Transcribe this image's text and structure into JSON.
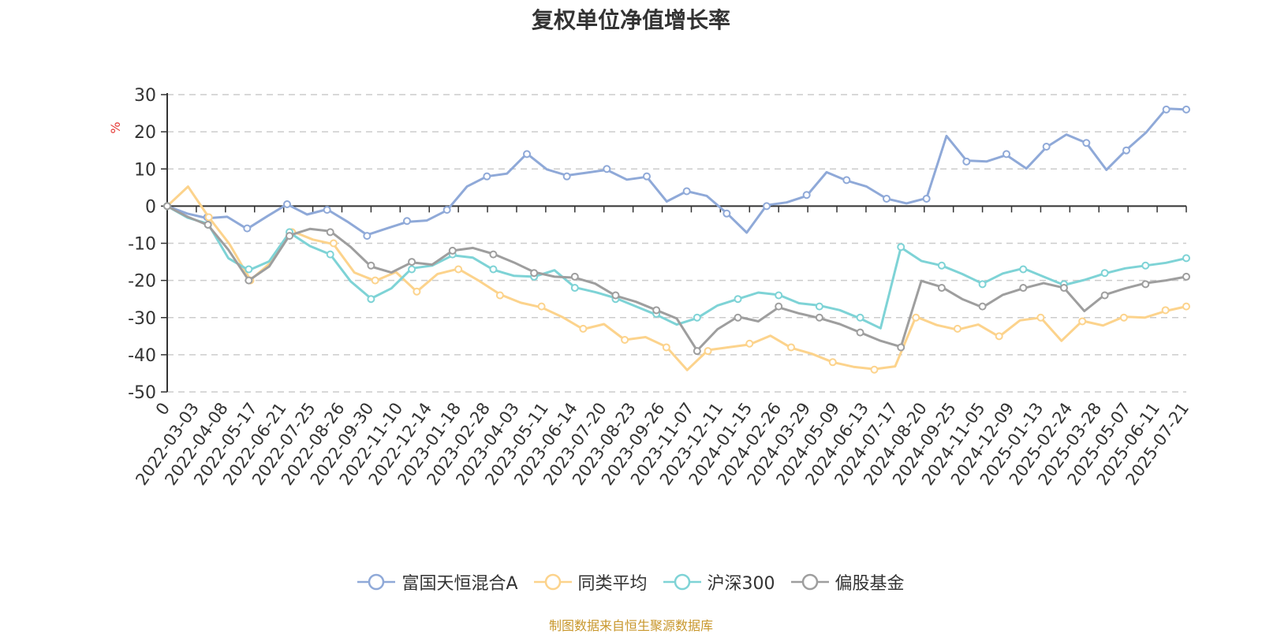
{
  "chart_data": {
    "type": "line",
    "title": "复权单位净值增长率",
    "ylabel": "%",
    "ylim": [
      -50,
      30
    ],
    "yticks": [
      30,
      20,
      10,
      0,
      -10,
      -20,
      -30,
      -40,
      -50
    ],
    "grid": true,
    "legend_position": "bottom",
    "x_tick_labels": [
      "0",
      "2022-03-03",
      "2022-04-08",
      "2022-05-17",
      "2022-06-21",
      "2022-07-25",
      "2022-08-26",
      "2022-09-30",
      "2022-11-10",
      "2022-12-14",
      "2023-01-18",
      "2023-02-28",
      "2023-04-03",
      "2023-05-11",
      "2023-06-14",
      "2023-07-20",
      "2023-08-23",
      "2023-09-26",
      "2023-11-07",
      "2023-12-11",
      "2024-01-15",
      "2024-02-26",
      "2024-03-29",
      "2024-05-09",
      "2024-06-13",
      "2024-07-17",
      "2024-08-20",
      "2024-09-25",
      "2024-11-05",
      "2024-12-09",
      "2025-01-13",
      "2025-02-24",
      "2025-03-28",
      "2025-05-07",
      "2025-06-11",
      "2025-07-21"
    ],
    "series": [
      {
        "name": "富国天恒混合A",
        "color": "#8fa9d8",
        "values": [
          0,
          -2,
          -3,
          -3,
          -6,
          -3,
          0.5,
          -2,
          -1,
          -4,
          -8,
          -6,
          -4,
          -4,
          -1,
          5,
          8,
          9,
          14,
          10,
          8,
          9,
          10,
          7,
          8,
          1,
          4,
          3,
          -2,
          -7,
          0,
          1,
          3,
          9,
          7,
          5,
          2,
          1,
          2,
          19,
          12,
          12,
          14,
          10,
          16,
          19,
          17,
          10,
          15,
          20,
          26,
          26
        ]
      },
      {
        "name": "同类平均",
        "color": "#fcd38c",
        "values": [
          0,
          5,
          -3,
          -10,
          -20,
          -15,
          -7,
          -9,
          -10,
          -18,
          -20,
          -18,
          -23,
          -18,
          -17,
          -20,
          -24,
          -26,
          -27,
          -30,
          -33,
          -32,
          -36,
          -35,
          -38,
          -44,
          -39,
          -38,
          -37,
          -35,
          -38,
          -40,
          -42,
          -43,
          -44,
          -43,
          -30,
          -32,
          -33,
          -32,
          -35,
          -31,
          -30,
          -36,
          -31,
          -32,
          -30,
          -30,
          -28,
          -27
        ]
      },
      {
        "name": "沪深300",
        "color": "#7ed3d6",
        "values": [
          0,
          -3,
          -5,
          -14,
          -17,
          -15,
          -7,
          -11,
          -13,
          -20,
          -25,
          -22,
          -17,
          -16,
          -13,
          -14,
          -17,
          -19,
          -19,
          -17,
          -22,
          -23,
          -25,
          -27,
          -29,
          -32,
          -30,
          -27,
          -25,
          -23,
          -24,
          -26,
          -27,
          -28,
          -30,
          -33,
          -11,
          -15,
          -16,
          -18,
          -21,
          -18,
          -17,
          -19,
          -21,
          -20,
          -18,
          -17,
          -16,
          -15,
          -14
        ]
      },
      {
        "name": "偏股基金",
        "color": "#9e9e9e",
        "values": [
          0,
          -3,
          -5,
          -12,
          -20,
          -16,
          -8,
          -6,
          -7,
          -11,
          -16,
          -18,
          -15,
          -16,
          -12,
          -11,
          -13,
          -15,
          -18,
          -19,
          -19,
          -21,
          -24,
          -26,
          -28,
          -30,
          -39,
          -33,
          -30,
          -31,
          -27,
          -29,
          -30,
          -32,
          -34,
          -36,
          -38,
          -20,
          -22,
          -25,
          -27,
          -24,
          -22,
          -21,
          -22,
          -28,
          -24,
          -22,
          -21,
          -20,
          -19
        ]
      }
    ]
  },
  "footer": "制图数据来自恒生聚源数据库"
}
